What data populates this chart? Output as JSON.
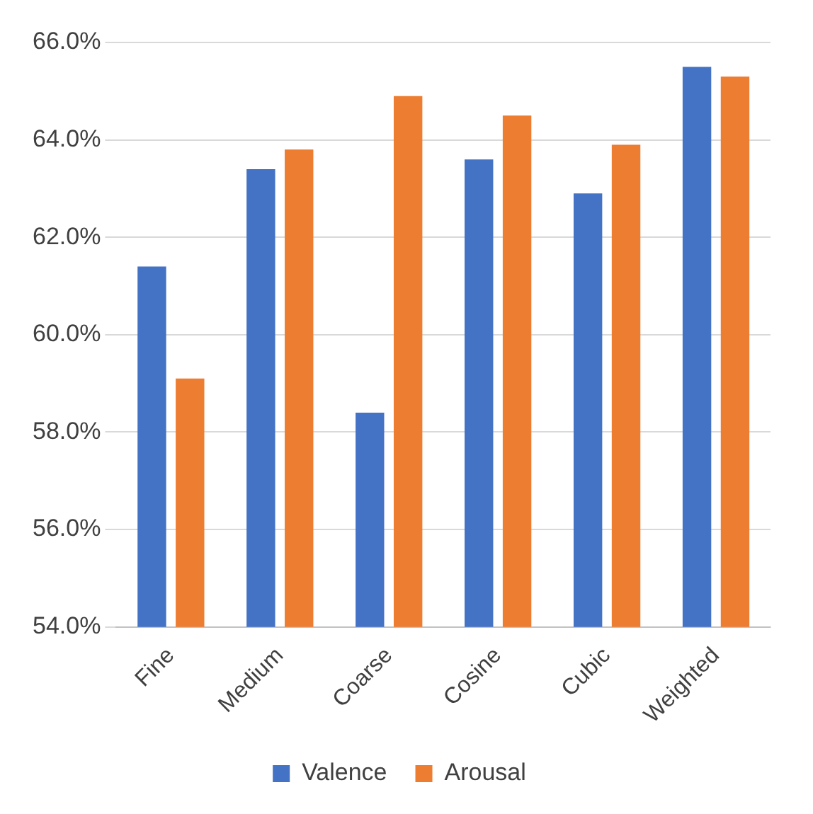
{
  "chart_data": {
    "type": "bar",
    "categories": [
      "Fine",
      "Medium",
      "Coarse",
      "Cosine",
      "Cubic",
      "Weighted"
    ],
    "series": [
      {
        "name": "Valence",
        "color": "#4472c4",
        "values": [
          61.4,
          63.4,
          58.4,
          63.6,
          62.9,
          65.5
        ]
      },
      {
        "name": "Arousal",
        "color": "#ed7d31",
        "values": [
          59.1,
          63.8,
          64.9,
          64.5,
          63.9,
          65.3
        ]
      }
    ],
    "ylim": [
      54,
      66
    ],
    "yticks": [
      {
        "value": 54,
        "label": "54.0%"
      },
      {
        "value": 56,
        "label": "56.0%"
      },
      {
        "value": 58,
        "label": "58.0%"
      },
      {
        "value": 60,
        "label": "60.0%"
      },
      {
        "value": 62,
        "label": "62.0%"
      },
      {
        "value": 64,
        "label": "64.0%"
      },
      {
        "value": 66,
        "label": "66.0%"
      }
    ],
    "grid": "y",
    "legend": "bottom"
  }
}
